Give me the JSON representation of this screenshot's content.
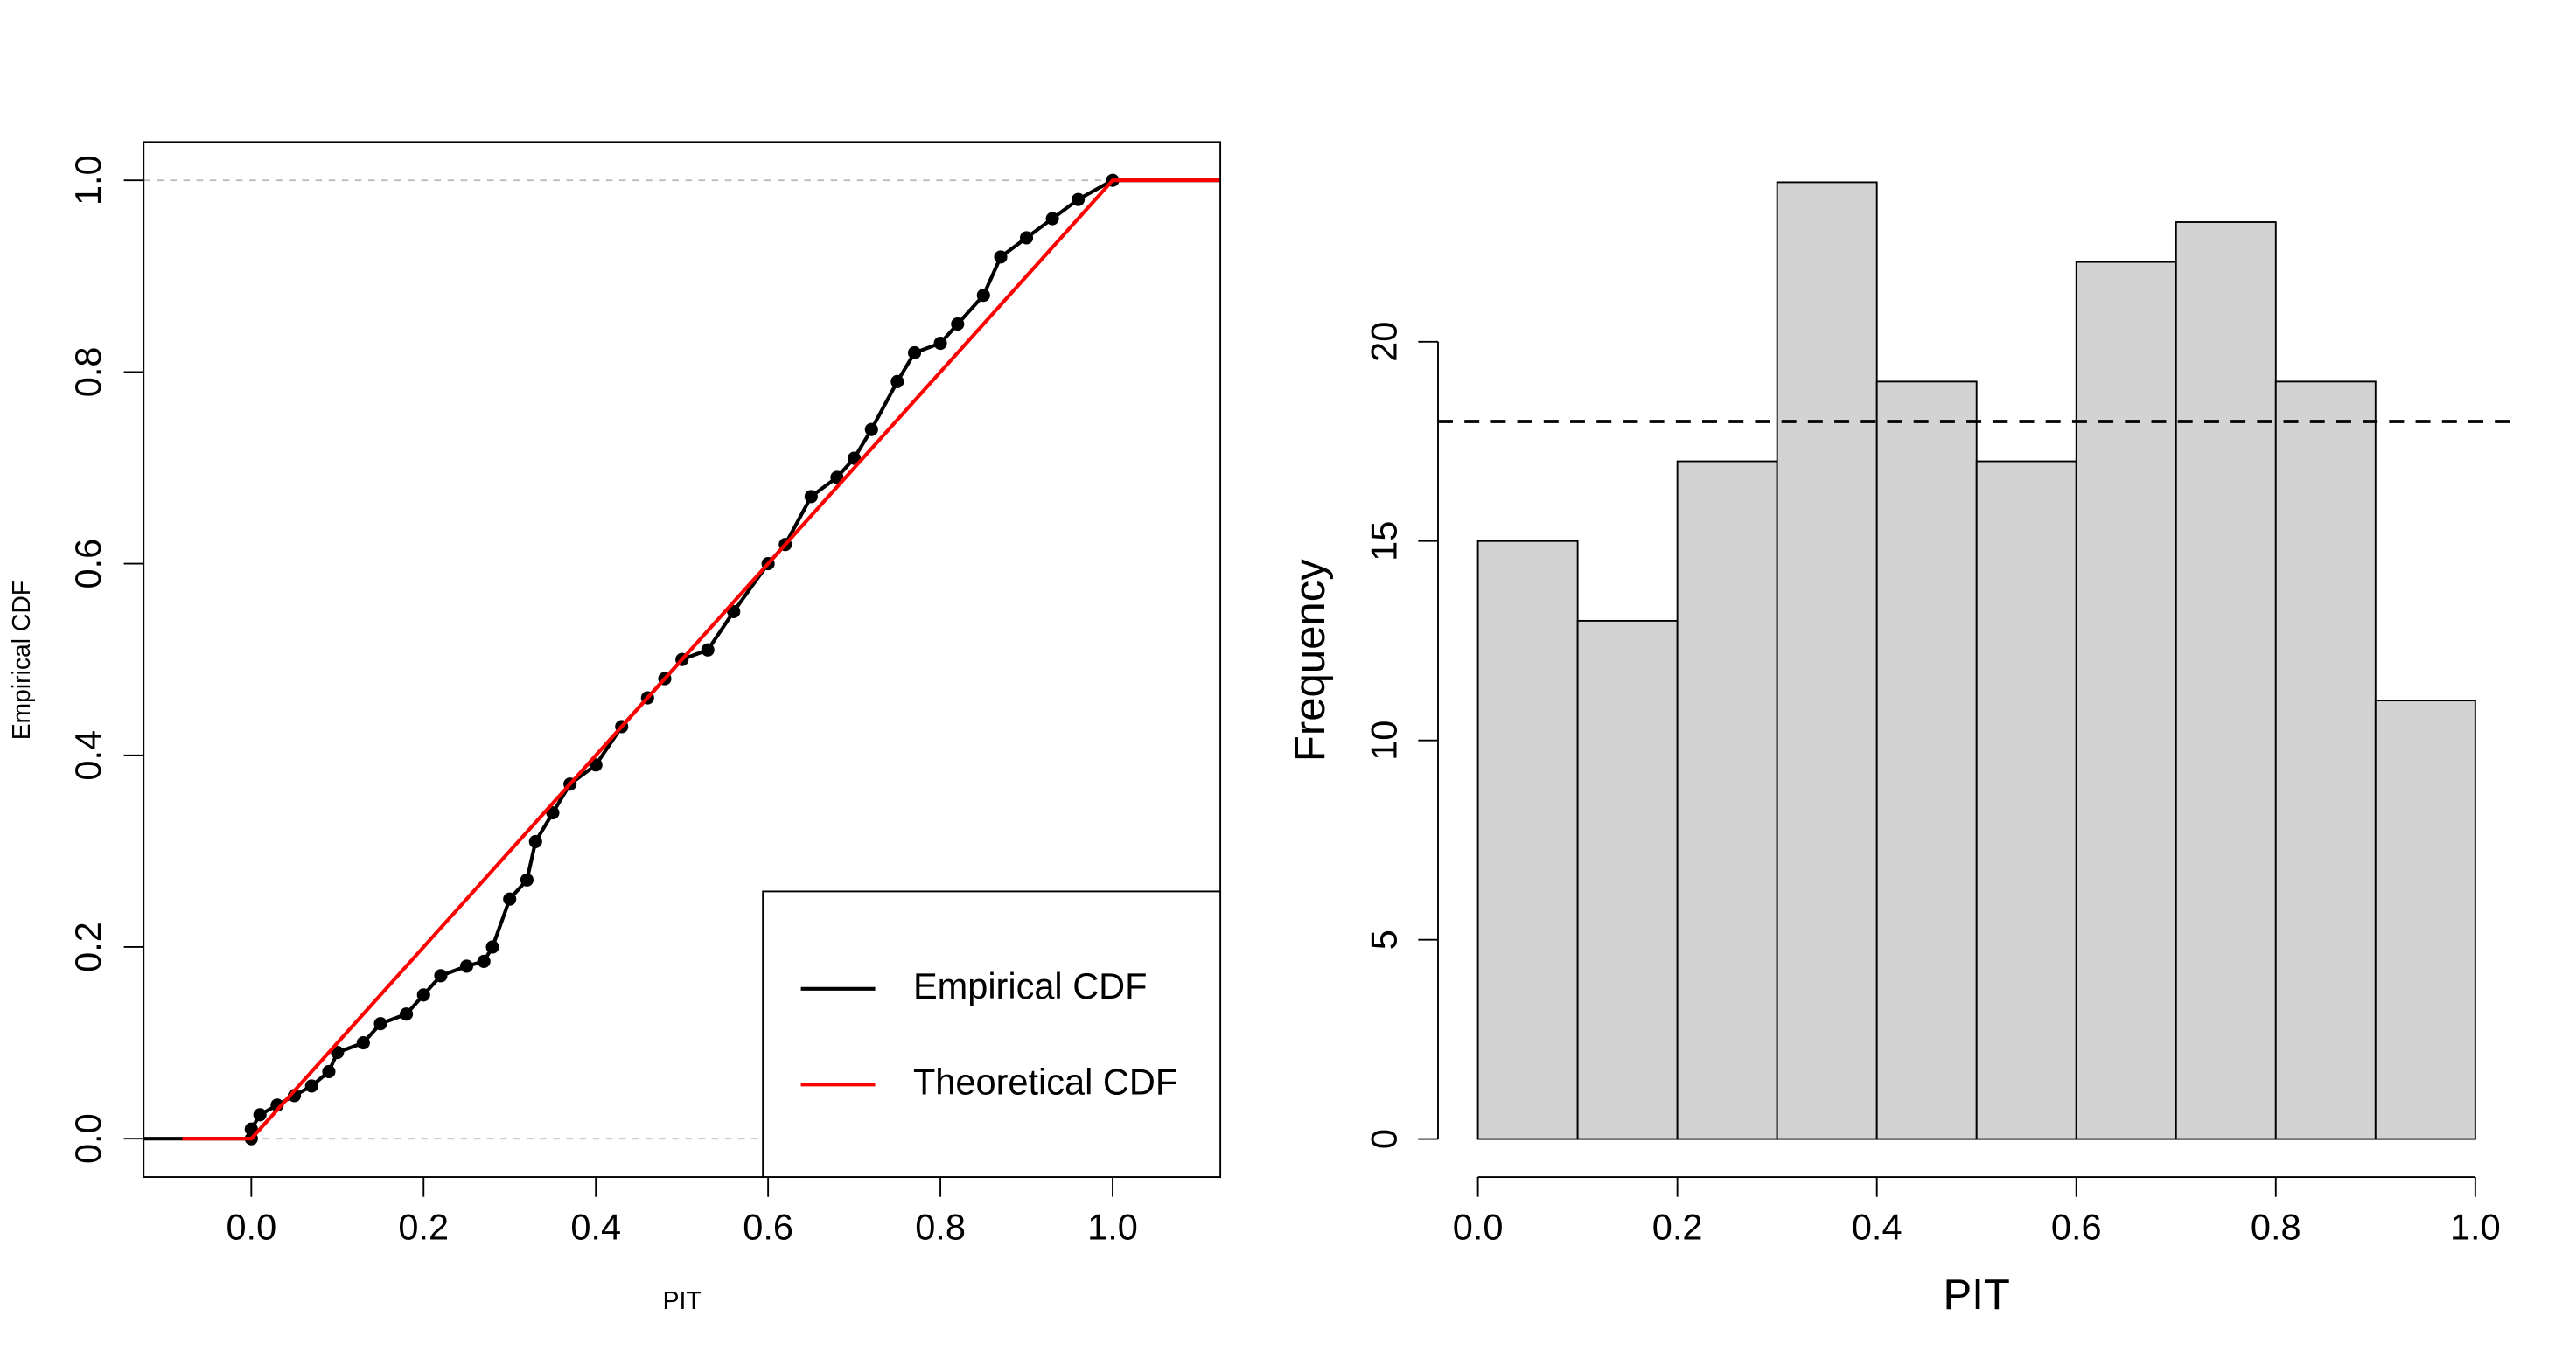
{
  "chart_data": [
    {
      "type": "line",
      "xlabel": "PIT",
      "ylabel": "Empirical CDF",
      "xlim": [
        -0.125,
        1.125
      ],
      "ylim": [
        -0.04,
        1.04
      ],
      "xticks": [
        {
          "value": 0,
          "label": "0.0"
        },
        0.2,
        0.4,
        0.6,
        0.8,
        {
          "value": 1,
          "label": "1.0"
        }
      ],
      "yticks": [
        {
          "value": 0,
          "label": "0.0"
        },
        0.2,
        0.4,
        0.6,
        0.8,
        {
          "value": 1,
          "label": "1.0"
        }
      ],
      "hlines": [
        0,
        1
      ],
      "hline_color": "#bbbbbb",
      "legend": "bottom-right",
      "series": [
        {
          "name": "Empirical CDF",
          "color": "#000000",
          "markers": true,
          "x": [
            -0.125,
            0,
            0,
            0.01,
            0.03,
            0.05,
            0.07,
            0.09,
            0.1,
            0.13,
            0.15,
            0.18,
            0.2,
            0.22,
            0.25,
            0.27,
            0.28,
            0.3,
            0.32,
            0.33,
            0.35,
            0.37,
            0.4,
            0.43,
            0.46,
            0.48,
            0.5,
            0.53,
            0.56,
            0.6,
            0.62,
            0.65,
            0.68,
            0.7,
            0.72,
            0.75,
            0.77,
            0.8,
            0.82,
            0.85,
            0.87,
            0.9,
            0.93,
            0.96,
            1,
            1.125
          ],
          "values": [
            0,
            0,
            0.01,
            0.025,
            0.035,
            0.045,
            0.055,
            0.07,
            0.09,
            0.1,
            0.12,
            0.13,
            0.15,
            0.17,
            0.18,
            0.185,
            0.2,
            0.25,
            0.27,
            0.31,
            0.34,
            0.37,
            0.39,
            0.43,
            0.46,
            0.48,
            0.5,
            0.51,
            0.55,
            0.6,
            0.62,
            0.67,
            0.69,
            0.71,
            0.74,
            0.79,
            0.82,
            0.83,
            0.85,
            0.88,
            0.92,
            0.94,
            0.96,
            0.98,
            1,
            1
          ]
        },
        {
          "name": "Theoretical CDF",
          "color": "#ff0000",
          "markers": false,
          "x": [
            -0.08,
            0,
            1,
            1.125
          ],
          "values": [
            0,
            0,
            1,
            1
          ]
        }
      ]
    },
    {
      "type": "histogram",
      "xlabel": "PIT",
      "ylabel": "Frequency",
      "bins": [
        0,
        0.1,
        0.2,
        0.3,
        0.4,
        0.5,
        0.6,
        0.7,
        0.8,
        0.9,
        1
      ],
      "values": [
        15,
        13,
        17,
        24,
        19,
        17,
        22,
        23,
        19,
        11
      ],
      "color": "#d3d3d3",
      "xlim": [
        0,
        1
      ],
      "ylim": [
        0,
        24
      ],
      "xticks": [
        {
          "value": 0,
          "label": "0.0"
        },
        0.2,
        0.4,
        0.6,
        0.8,
        {
          "value": 1,
          "label": "1.0"
        }
      ],
      "yticks": [
        0,
        5,
        10,
        15,
        20
      ],
      "hlines": [
        18
      ],
      "hline_color": "#000000"
    }
  ]
}
